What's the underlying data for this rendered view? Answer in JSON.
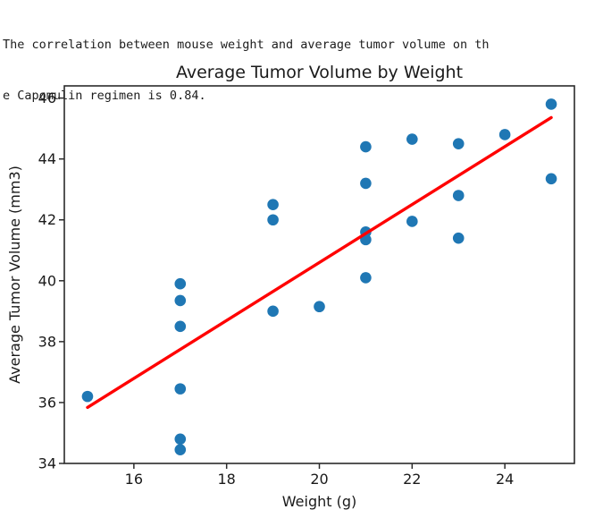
{
  "console": {
    "lines": [
      "The correlation between mouse weight and average tumor volume on th",
      "e Capomulin regimen is 0.84."
    ]
  },
  "chart_data": {
    "type": "scatter",
    "title": "Average Tumor Volume by Weight",
    "xlabel": "Weight (g)",
    "ylabel": "Average Tumor Volume (mm3)",
    "xlim": [
      14.5,
      25.5
    ],
    "ylim": [
      34,
      46.4
    ],
    "xticks": [
      16,
      18,
      20,
      22,
      24
    ],
    "yticks": [
      34,
      36,
      38,
      40,
      42,
      44,
      46
    ],
    "grid": false,
    "legend": "none",
    "points": [
      [
        15,
        36.2
      ],
      [
        17,
        39.9
      ],
      [
        17,
        39.35
      ],
      [
        17,
        38.5
      ],
      [
        17,
        36.45
      ],
      [
        17,
        34.8
      ],
      [
        17,
        34.45
      ],
      [
        19,
        42.5
      ],
      [
        19,
        42.0
      ],
      [
        19,
        39.0
      ],
      [
        20,
        39.15
      ],
      [
        21,
        44.4
      ],
      [
        21,
        43.2
      ],
      [
        21,
        41.6
      ],
      [
        21,
        41.35
      ],
      [
        21,
        40.1
      ],
      [
        22,
        44.65
      ],
      [
        22,
        41.95
      ],
      [
        23,
        44.5
      ],
      [
        23,
        42.8
      ],
      [
        23,
        41.4
      ],
      [
        24,
        44.8
      ],
      [
        25,
        45.8
      ],
      [
        25,
        43.35
      ]
    ],
    "regression_line": {
      "x": [
        15,
        25
      ],
      "y": [
        35.84,
        45.36
      ]
    },
    "correlation": "0.84",
    "colors": {
      "point": "#1f77b4",
      "line": "#ff0000",
      "text": "#1a1a1a",
      "spine": "#2b2b2b"
    }
  }
}
